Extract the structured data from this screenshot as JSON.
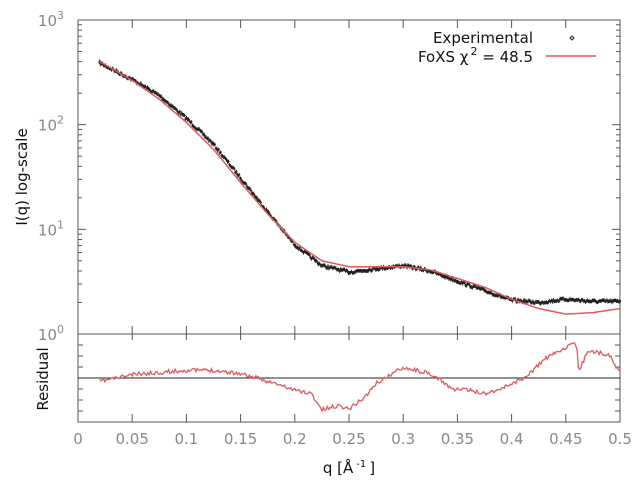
{
  "chart_data": [
    {
      "type": "scatter",
      "panel": "main",
      "ylabel": "I(q) log-scale",
      "y_scale": "log",
      "ylim": [
        1,
        1000
      ],
      "xlim": [
        0,
        0.5
      ],
      "y_tick_labels": [
        {
          "base": "10",
          "exp": "0"
        },
        {
          "base": "10",
          "exp": "1"
        },
        {
          "base": "10",
          "exp": "2"
        },
        {
          "base": "10",
          "exp": "3"
        }
      ],
      "legend_placement": "top-right",
      "legend": {
        "experimental": "Experimental",
        "fit_prefix": "FoXS χ",
        "fit_sup": "2",
        "fit_suffix": " = 48.5"
      },
      "colors": {
        "experimental": "#222222",
        "fit": "#e05a5a"
      },
      "series": [
        {
          "name": "Experimental",
          "style": "points",
          "x": [
            0.02,
            0.05,
            0.075,
            0.1,
            0.125,
            0.15,
            0.175,
            0.2,
            0.225,
            0.25,
            0.275,
            0.3,
            0.325,
            0.35,
            0.375,
            0.4,
            0.425,
            0.45,
            0.475,
            0.5
          ],
          "y": [
            390,
            270,
            190,
            115,
            65,
            31,
            14.7,
            7.1,
            4.5,
            3.9,
            4.2,
            4.5,
            4.0,
            3.2,
            2.6,
            2.1,
            2.0,
            2.15,
            2.05,
            2.05
          ]
        },
        {
          "name": "FoXS χ2 = 48.5",
          "style": "line",
          "x": [
            0.02,
            0.05,
            0.075,
            0.1,
            0.125,
            0.15,
            0.175,
            0.2,
            0.225,
            0.25,
            0.275,
            0.3,
            0.325,
            0.35,
            0.375,
            0.4,
            0.425,
            0.45,
            0.475,
            0.5
          ],
          "y": [
            400,
            265,
            175,
            105,
            58,
            28,
            14,
            7.5,
            5.0,
            4.4,
            4.4,
            4.4,
            4.1,
            3.4,
            2.8,
            2.15,
            1.75,
            1.55,
            1.6,
            1.75
          ]
        }
      ]
    },
    {
      "type": "line",
      "panel": "residual",
      "ylabel": "Residual",
      "xlabel": "q [Å",
      "xlabel_sup": "-1",
      "xlabel_end": "]",
      "xlim": [
        0,
        0.5
      ],
      "ylim": [
        -4,
        4
      ],
      "x_tick_labels": [
        "0",
        "0.05",
        "0.1",
        "0.15",
        "0.2",
        "0.25",
        "0.3",
        "0.35",
        "0.4",
        "0.45",
        "0.5"
      ],
      "zero_line": true,
      "series": [
        {
          "x": [
            0.02,
            0.05,
            0.075,
            0.1,
            0.125,
            0.15,
            0.175,
            0.2,
            0.215,
            0.225,
            0.24,
            0.25,
            0.265,
            0.275,
            0.29,
            0.3,
            0.32,
            0.335,
            0.345,
            0.36,
            0.375,
            0.39,
            0.4,
            0.41,
            0.42,
            0.43,
            0.45,
            0.46,
            0.462,
            0.47,
            0.49,
            0.5
          ],
          "y": [
            -0.3,
            0.3,
            0.5,
            0.7,
            0.7,
            0.4,
            -0.3,
            -1.1,
            -1.4,
            -2.9,
            -2.5,
            -2.8,
            -1.7,
            -0.5,
            0.4,
            1.0,
            0.5,
            -0.2,
            -1.0,
            -1.1,
            -1.4,
            -1.0,
            -0.5,
            -0.1,
            0.7,
            1.7,
            2.8,
            3.1,
            0.5,
            2.5,
            2.1,
            0.5
          ]
        }
      ]
    }
  ]
}
